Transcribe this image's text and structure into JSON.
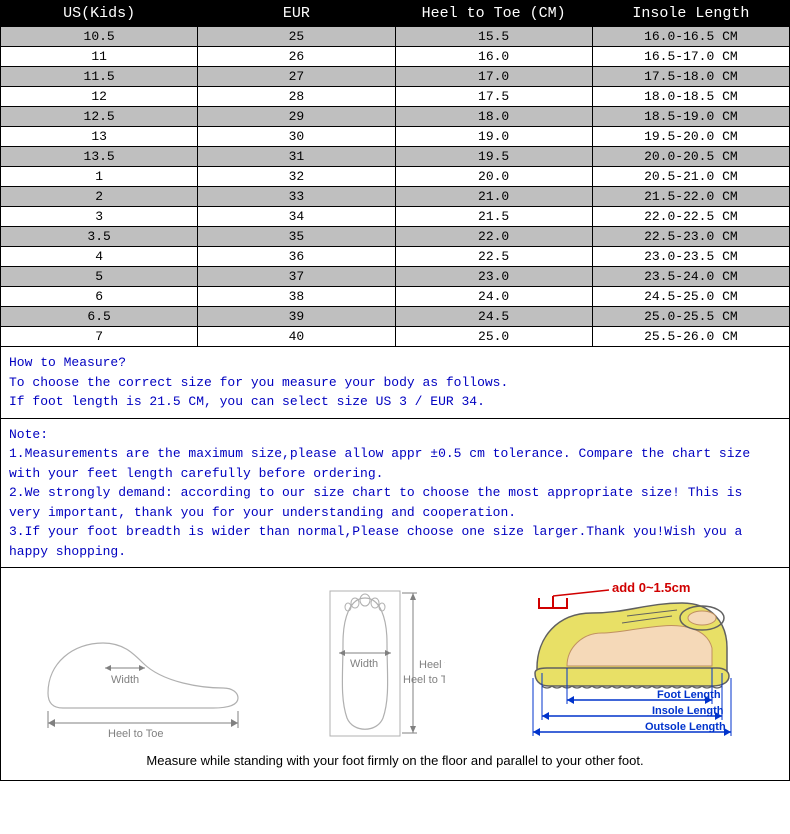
{
  "table": {
    "headers": [
      "US(Kids)",
      "EUR",
      "Heel to Toe (CM)",
      "Insole Length"
    ],
    "header_bg": "#000000",
    "header_color": "#ffffff",
    "alt_bg": "#bfbfbf",
    "norm_bg": "#ffffff",
    "border_color": "#000000",
    "font_family": "Courier New",
    "rows": [
      [
        "10.5",
        "25",
        "15.5",
        "16.0-16.5 CM"
      ],
      [
        "11",
        "26",
        "16.0",
        "16.5-17.0 CM"
      ],
      [
        "11.5",
        "27",
        "17.0",
        "17.5-18.0 CM"
      ],
      [
        "12",
        "28",
        "17.5",
        "18.0-18.5 CM"
      ],
      [
        "12.5",
        "29",
        "18.0",
        "18.5-19.0 CM"
      ],
      [
        "13",
        "30",
        "19.0",
        "19.5-20.0 CM"
      ],
      [
        "13.5",
        "31",
        "19.5",
        "20.0-20.5 CM"
      ],
      [
        "1",
        "32",
        "20.0",
        "20.5-21.0 CM"
      ],
      [
        "2",
        "33",
        "21.0",
        "21.5-22.0 CM"
      ],
      [
        "3",
        "34",
        "21.5",
        "22.0-22.5 CM"
      ],
      [
        "3.5",
        "35",
        "22.0",
        "22.5-23.0 CM"
      ],
      [
        "4",
        "36",
        "22.5",
        "23.0-23.5 CM"
      ],
      [
        "5",
        "37",
        "23.0",
        "23.5-24.0 CM"
      ],
      [
        "6",
        "38",
        "24.0",
        "24.5-25.0 CM"
      ],
      [
        "6.5",
        "39",
        "24.5",
        "25.0-25.5 CM"
      ],
      [
        "7",
        "40",
        "25.0",
        "25.5-26.0 CM"
      ]
    ]
  },
  "howto": {
    "title": "How to Measure?",
    "line1": "To choose the correct size for you measure your body as follows.",
    "line2": "If foot length is 21.5 CM, you can select size US 3 / EUR 34.",
    "text_color": "#0000c0"
  },
  "note": {
    "title": "Note:",
    "line1": "1.Measurements are the maximum size,please allow appr ±0.5 cm tolerance. Compare the chart size with your feet length carefully before ordering.",
    "line2": "2.We strongly demand: according to our size chart to choose the most appropriate size! This is very important, thank you for your understanding and cooperation.",
    "line3": "3.If your foot breadth is wider than normal,Please choose one size larger.Thank you!Wish you a happy shopping.",
    "text_color": "#0000c0"
  },
  "illustration": {
    "side_foot": {
      "width_label": "Width",
      "heel_toe_label": "Heel to Toe",
      "stroke": "#b0b0b0"
    },
    "top_foot": {
      "width_label": "Width",
      "heel_toe_label": "Heel to Toe",
      "stroke": "#b0b0b0",
      "fill": "#ffffff"
    },
    "shoe": {
      "add_label": "add 0~1.5cm",
      "foot_label": "Foot Length",
      "insole_label": "Insole Length",
      "outsole_label": "Outsole Length",
      "shoe_fill": "#e8e066",
      "shoe_stroke": "#606060",
      "foot_fill": "#f5d9b8",
      "arrow_color": "#0033cc",
      "bracket_color": "#d00000"
    },
    "caption": "Measure while standing with your foot firmly on the floor and parallel to your other foot."
  }
}
